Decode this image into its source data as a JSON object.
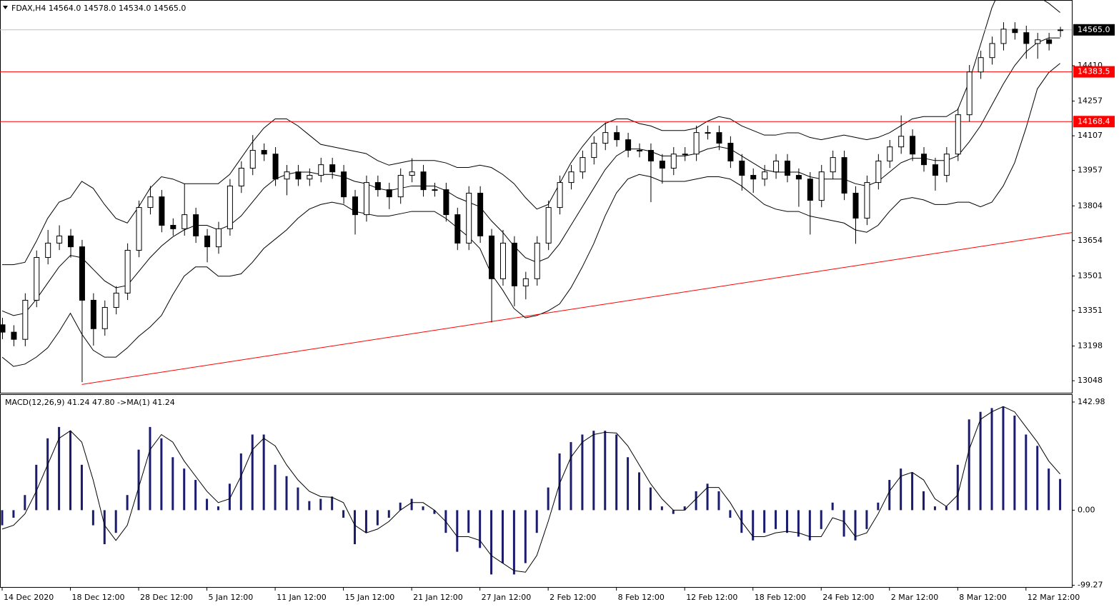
{
  "chart_data": [
    {
      "type": "candlestick",
      "title": "FDAX,H4  14564.0 14578.0 14534.0 14565.0",
      "categories": [
        "14 Dec 2020",
        null,
        null,
        null,
        null,
        null,
        "18 Dec 12:00",
        null,
        null,
        null,
        null,
        null,
        "28 Dec 12:00",
        null,
        null,
        null,
        null,
        null,
        "5 Jan 12:00",
        null,
        null,
        null,
        null,
        null,
        "11 Jan 12:00",
        null,
        null,
        null,
        null,
        null,
        "15 Jan 12:00",
        null,
        null,
        null,
        null,
        null,
        "21 Jan 12:00",
        null,
        null,
        null,
        null,
        null,
        "27 Jan 12:00",
        null,
        null,
        null,
        null,
        null,
        "2 Feb 12:00",
        null,
        null,
        null,
        null,
        null,
        "8 Feb 12:00",
        null,
        null,
        null,
        null,
        null,
        "12 Feb 12:00",
        null,
        null,
        null,
        null,
        null,
        "18 Feb 12:00",
        null,
        null,
        null,
        null,
        null,
        "24 Feb 12:00",
        null,
        null,
        null,
        null,
        null,
        "2 Mar 12:00",
        null,
        null,
        null,
        null,
        null,
        "8 Mar 12:00",
        null,
        null,
        null,
        null,
        null,
        "12 Mar 12:00",
        null,
        null,
        null
      ],
      "open": [
        13290,
        13258,
        13227,
        13396,
        13581,
        13643,
        13674,
        13627,
        13396,
        13273,
        13365,
        13427,
        13612,
        13797,
        13843,
        13720,
        13705,
        13766,
        13674,
        13627,
        13705,
        13890,
        13967,
        14044,
        14028,
        13920,
        13951,
        13920,
        13936,
        13982,
        13951,
        13843,
        13766,
        13905,
        13874,
        13843,
        13936,
        13951,
        13874,
        13874,
        13766,
        13643,
        13859,
        13674,
        13489,
        13643,
        13458,
        13489,
        13643,
        13797,
        13905,
        13951,
        14013,
        14075,
        14121,
        14090,
        14044,
        14044,
        13998,
        13967,
        14028,
        14028,
        14121,
        14121,
        14075,
        13998,
        13936,
        13920,
        13951,
        13998,
        13936,
        13920,
        13828,
        13951,
        14013,
        13859,
        13751,
        13905,
        13998,
        14059,
        14105,
        14028,
        13982,
        13936,
        14028,
        14198,
        14383,
        14445,
        14506,
        14568,
        14553,
        14506,
        14522,
        14564
      ],
      "high": [
        13320,
        13288,
        13426,
        13611,
        13700,
        13720,
        13704,
        13657,
        13426,
        13395,
        13457,
        13642,
        13827,
        13890,
        13873,
        13750,
        13900,
        13796,
        13704,
        13735,
        13920,
        13997,
        14110,
        14074,
        14058,
        13981,
        13981,
        13966,
        14012,
        14012,
        13981,
        13873,
        13935,
        13935,
        13904,
        13966,
        14010,
        13981,
        13904,
        13904,
        13796,
        13889,
        13889,
        13704,
        13700,
        13673,
        13519,
        13673,
        13827,
        13935,
        13981,
        14043,
        14105,
        14165,
        14151,
        14120,
        14074,
        14074,
        14028,
        14058,
        14058,
        14151,
        14151,
        14151,
        14105,
        14028,
        13966,
        13981,
        14028,
        14028,
        13966,
        13950,
        13981,
        14043,
        14043,
        13889,
        13935,
        14028,
        14089,
        14195,
        14135,
        14058,
        14012,
        14058,
        14228,
        14413,
        14475,
        14536,
        14598,
        14598,
        14583,
        14552,
        14552,
        14578
      ],
      "low": [
        13228,
        13197,
        13197,
        13366,
        13551,
        13613,
        13580,
        13042,
        13200,
        13243,
        13335,
        13397,
        13582,
        13767,
        13690,
        13675,
        13675,
        13644,
        13560,
        13597,
        13675,
        13860,
        13937,
        13998,
        13890,
        13850,
        13890,
        13890,
        13906,
        13921,
        13813,
        13680,
        13736,
        13844,
        13790,
        13813,
        13906,
        13844,
        13844,
        13736,
        13613,
        13613,
        13644,
        13300,
        13459,
        13370,
        13400,
        13459,
        13613,
        13767,
        13875,
        13921,
        13983,
        14045,
        14060,
        14014,
        14014,
        13820,
        13900,
        13937,
        13998,
        13998,
        14091,
        14045,
        13968,
        13870,
        13860,
        13890,
        13921,
        13906,
        13800,
        13680,
        13798,
        13921,
        13829,
        13640,
        13721,
        13875,
        13968,
        14029,
        13998,
        13952,
        13870,
        13906,
        13998,
        14168,
        14353,
        14415,
        14476,
        14523,
        14440,
        14440,
        14476,
        14534
      ],
      "close": [
        13258,
        13227,
        13396,
        13581,
        13643,
        13674,
        13627,
        13396,
        13273,
        13365,
        13427,
        13612,
        13797,
        13843,
        13720,
        13705,
        13766,
        13674,
        13627,
        13705,
        13890,
        13967,
        14044,
        14028,
        13920,
        13951,
        13920,
        13936,
        13982,
        13951,
        13843,
        13766,
        13905,
        13874,
        13843,
        13936,
        13951,
        13874,
        13874,
        13766,
        13643,
        13859,
        13674,
        13489,
        13643,
        13458,
        13489,
        13643,
        13797,
        13905,
        13951,
        14013,
        14075,
        14121,
        14090,
        14044,
        14044,
        13998,
        13967,
        14028,
        14028,
        14121,
        14121,
        14075,
        13998,
        13936,
        13920,
        13951,
        13998,
        13936,
        13920,
        13828,
        13951,
        14013,
        13859,
        13751,
        13905,
        13998,
        14059,
        14105,
        14028,
        13982,
        13936,
        14028,
        14198,
        14383,
        14445,
        14506,
        14568,
        14553,
        14506,
        14522,
        14506,
        14565
      ],
      "bollinger_upper": [
        13550,
        13550,
        13560,
        13650,
        13750,
        13820,
        13840,
        13910,
        13880,
        13810,
        13750,
        13730,
        13800,
        13880,
        13930,
        13920,
        13900,
        13900,
        13900,
        13900,
        13940,
        14010,
        14080,
        14140,
        14180,
        14180,
        14150,
        14110,
        14070,
        14060,
        14050,
        14040,
        14030,
        14000,
        13980,
        13990,
        14000,
        14000,
        14000,
        13990,
        13970,
        13970,
        13980,
        13970,
        13940,
        13900,
        13840,
        13790,
        13810,
        13900,
        13990,
        14060,
        14120,
        14160,
        14180,
        14180,
        14160,
        14150,
        14130,
        14130,
        14130,
        14140,
        14170,
        14190,
        14180,
        14150,
        14130,
        14110,
        14110,
        14120,
        14120,
        14100,
        14090,
        14100,
        14110,
        14100,
        14090,
        14100,
        14120,
        14150,
        14180,
        14190,
        14190,
        14190,
        14220,
        14340,
        14500,
        14660,
        14770,
        14830,
        14800,
        14710,
        14680,
        14640
      ],
      "bollinger_middle": [
        13350,
        13330,
        13340,
        13400,
        13470,
        13540,
        13590,
        13580,
        13530,
        13480,
        13450,
        13460,
        13520,
        13580,
        13630,
        13670,
        13700,
        13720,
        13720,
        13700,
        13720,
        13760,
        13820,
        13880,
        13920,
        13940,
        13950,
        13950,
        13940,
        13940,
        13930,
        13910,
        13900,
        13880,
        13870,
        13880,
        13890,
        13890,
        13890,
        13870,
        13840,
        13820,
        13800,
        13740,
        13690,
        13630,
        13580,
        13560,
        13580,
        13640,
        13720,
        13800,
        13880,
        13960,
        14020,
        14050,
        14050,
        14040,
        14020,
        14020,
        14020,
        14030,
        14050,
        14060,
        14050,
        14020,
        13990,
        13960,
        13950,
        13950,
        13950,
        13930,
        13920,
        13920,
        13920,
        13900,
        13890,
        13910,
        13950,
        13990,
        14010,
        14010,
        14000,
        14000,
        14020,
        14080,
        14150,
        14240,
        14330,
        14410,
        14470,
        14510,
        14530,
        14530
      ],
      "bollinger_lower": [
        13150,
        13110,
        13120,
        13150,
        13190,
        13260,
        13340,
        13250,
        13180,
        13150,
        13150,
        13190,
        13240,
        13280,
        13330,
        13420,
        13500,
        13540,
        13540,
        13500,
        13500,
        13510,
        13560,
        13620,
        13660,
        13700,
        13750,
        13790,
        13810,
        13820,
        13810,
        13780,
        13770,
        13760,
        13760,
        13770,
        13780,
        13780,
        13780,
        13750,
        13710,
        13670,
        13620,
        13510,
        13440,
        13360,
        13320,
        13330,
        13350,
        13380,
        13450,
        13540,
        13640,
        13760,
        13860,
        13920,
        13940,
        13930,
        13910,
        13910,
        13910,
        13920,
        13930,
        13930,
        13920,
        13890,
        13850,
        13810,
        13790,
        13780,
        13780,
        13760,
        13750,
        13740,
        13730,
        13700,
        13690,
        13720,
        13780,
        13830,
        13840,
        13830,
        13810,
        13810,
        13820,
        13820,
        13800,
        13820,
        13890,
        13990,
        14140,
        14310,
        14380,
        14420
      ],
      "up_color": "#ffffff",
      "down_color": "#000000",
      "line_color": "#000000",
      "ylim": [
        12996,
        14691
      ],
      "yticks": [
        14410,
        14257,
        14107,
        13957,
        13804,
        13654,
        13501,
        13351,
        13198,
        13048
      ],
      "last_price": {
        "value": 14565,
        "label": "14565.0",
        "color": "#c0c0c0"
      },
      "levels": [
        {
          "value": 14383.5,
          "label": "14383.5",
          "color": "#ff0000"
        },
        {
          "value": 14168.4,
          "label": "14168.4",
          "color": "#ff0000"
        }
      ],
      "trendline": {
        "color": "#ff0000",
        "start": {
          "index": 7,
          "price": 13032
        },
        "end": {
          "index": 93,
          "price": 13681
        }
      }
    },
    {
      "type": "macd",
      "title": "MACD(12,26,9) 41.24 47.80  ->MA(1) 41.24",
      "values": [
        -20,
        -10,
        20,
        60,
        95,
        110,
        105,
        60,
        -20,
        -45,
        -30,
        20,
        80,
        110,
        95,
        70,
        55,
        40,
        15,
        5,
        35,
        75,
        100,
        100,
        60,
        45,
        30,
        12,
        15,
        18,
        -10,
        -45,
        -30,
        -20,
        -10,
        10,
        15,
        5,
        -5,
        -30,
        -55,
        -30,
        -50,
        -85,
        -70,
        -85,
        -70,
        -30,
        30,
        75,
        90,
        100,
        105,
        105,
        100,
        70,
        50,
        30,
        5,
        -5,
        5,
        25,
        35,
        25,
        -10,
        -30,
        -40,
        -30,
        -25,
        -30,
        -35,
        -40,
        -25,
        10,
        -35,
        -40,
        -25,
        10,
        40,
        55,
        50,
        25,
        5,
        5,
        60,
        120,
        130,
        135,
        137,
        125,
        100,
        85,
        55,
        41.24
      ],
      "signal": [
        -25,
        -20,
        -5,
        25,
        60,
        95,
        105,
        90,
        40,
        -20,
        -40,
        -20,
        30,
        80,
        100,
        90,
        65,
        45,
        25,
        10,
        15,
        45,
        80,
        95,
        85,
        60,
        40,
        25,
        18,
        17,
        10,
        -20,
        -30,
        -25,
        -15,
        0,
        10,
        10,
        0,
        -15,
        -35,
        -35,
        -40,
        -60,
        -70,
        -80,
        -82,
        -60,
        -15,
        35,
        70,
        90,
        100,
        103,
        102,
        85,
        60,
        35,
        15,
        0,
        0,
        15,
        30,
        30,
        10,
        -15,
        -35,
        -35,
        -30,
        -28,
        -30,
        -35,
        -35,
        -10,
        -15,
        -35,
        -30,
        -5,
        25,
        45,
        50,
        40,
        15,
        5,
        20,
        80,
        120,
        130,
        137,
        130,
        110,
        90,
        65,
        47.8
      ],
      "color": "#1c1c6e",
      "signal_color": "#000000",
      "ylim": [
        -101.6,
        152.4
      ],
      "yticks": [
        142.98,
        {
          "value": 0,
          "label": "0.00"
        },
        -99.27
      ]
    }
  ]
}
